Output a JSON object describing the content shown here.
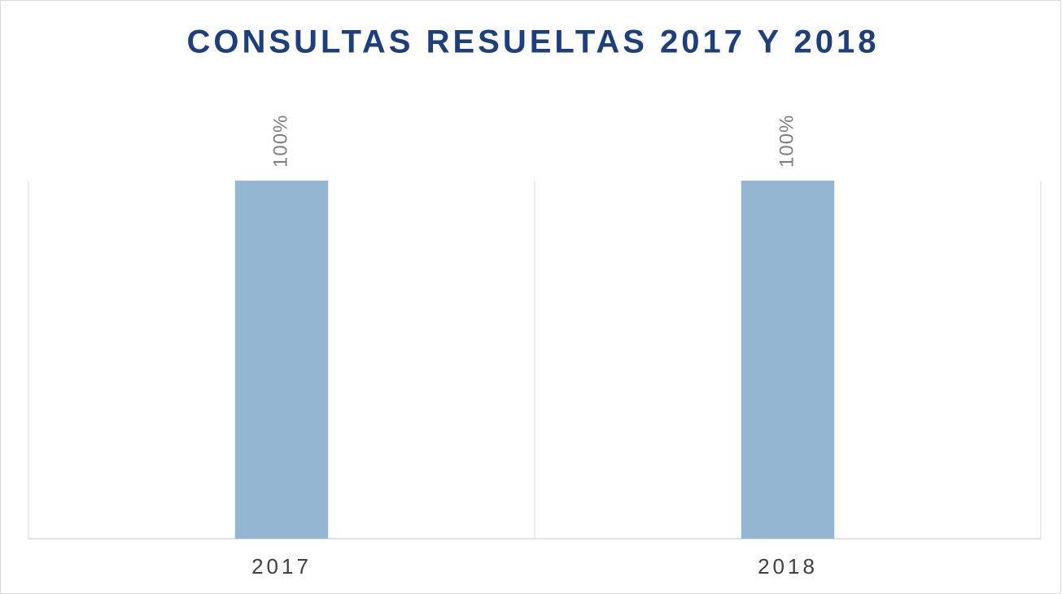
{
  "chart_data": {
    "type": "bar",
    "title": "CONSULTAS RESUELTAS 2017 Y 2018",
    "categories": [
      "2017",
      "2018"
    ],
    "values": [
      100,
      100
    ],
    "value_labels": [
      "100%",
      "100%"
    ],
    "color": "#95b6d3",
    "ylim": [
      0,
      100
    ]
  }
}
